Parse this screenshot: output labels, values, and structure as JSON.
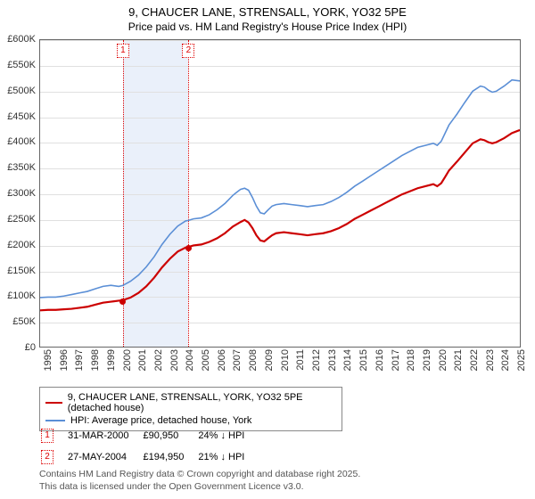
{
  "title_line1": "9, CHAUCER LANE, STRENSALL, YORK, YO32 5PE",
  "title_line2": "Price paid vs. HM Land Registry's House Price Index (HPI)",
  "chart": {
    "type": "line",
    "xlim": [
      1995,
      2025.5
    ],
    "ylim": [
      0,
      600000
    ],
    "ytick_step": 50000,
    "ytick_labels": [
      "£0",
      "£50K",
      "£100K",
      "£150K",
      "£200K",
      "£250K",
      "£300K",
      "£350K",
      "£400K",
      "£450K",
      "£500K",
      "£550K",
      "£600K"
    ],
    "xtick_step": 1,
    "xtick_labels": [
      "1995",
      "1996",
      "1997",
      "1998",
      "1999",
      "2000",
      "2001",
      "2002",
      "2003",
      "2004",
      "2005",
      "2006",
      "2007",
      "2008",
      "2009",
      "2010",
      "2011",
      "2012",
      "2013",
      "2014",
      "2015",
      "2016",
      "2017",
      "2018",
      "2019",
      "2020",
      "2021",
      "2022",
      "2023",
      "2024",
      "2025"
    ],
    "grid_color": "#e0e0e0",
    "background_band": {
      "start": 2000.25,
      "end": 2004.4,
      "color": "#eaf0fa"
    },
    "event_lines": [
      {
        "id": "1",
        "x": 2000.25
      },
      {
        "id": "2",
        "x": 2004.4
      }
    ],
    "series": [
      {
        "name": "price_paid",
        "legend": "9, CHAUCER LANE, STRENSALL, YORK, YO32 5PE (detached house)",
        "color": "#cc0000",
        "line_width": 2.2,
        "points": [
          [
            1995,
            71000
          ],
          [
            1995.5,
            72000
          ],
          [
            1996,
            72000
          ],
          [
            1996.5,
            73000
          ],
          [
            1997,
            74000
          ],
          [
            1997.5,
            76000
          ],
          [
            1998,
            78000
          ],
          [
            1998.5,
            82000
          ],
          [
            1999,
            86000
          ],
          [
            1999.5,
            88000
          ],
          [
            2000,
            90000
          ],
          [
            2000.25,
            90950
          ],
          [
            2000.75,
            96000
          ],
          [
            2001.25,
            105000
          ],
          [
            2001.75,
            118000
          ],
          [
            2002.25,
            135000
          ],
          [
            2002.75,
            155000
          ],
          [
            2003.25,
            172000
          ],
          [
            2003.75,
            186000
          ],
          [
            2004.25,
            194000
          ],
          [
            2004.4,
            194950
          ],
          [
            2004.75,
            198000
          ],
          [
            2005.25,
            200000
          ],
          [
            2005.75,
            205000
          ],
          [
            2006.25,
            212000
          ],
          [
            2006.75,
            222000
          ],
          [
            2007.25,
            235000
          ],
          [
            2007.75,
            244000
          ],
          [
            2008,
            248000
          ],
          [
            2008.25,
            243000
          ],
          [
            2008.5,
            232000
          ],
          [
            2008.75,
            218000
          ],
          [
            2009,
            208000
          ],
          [
            2009.25,
            206000
          ],
          [
            2009.5,
            212000
          ],
          [
            2009.75,
            218000
          ],
          [
            2010,
            222000
          ],
          [
            2010.5,
            224000
          ],
          [
            2011,
            222000
          ],
          [
            2011.5,
            220000
          ],
          [
            2012,
            218000
          ],
          [
            2012.5,
            220000
          ],
          [
            2013,
            222000
          ],
          [
            2013.5,
            226000
          ],
          [
            2014,
            232000
          ],
          [
            2014.5,
            240000
          ],
          [
            2015,
            250000
          ],
          [
            2015.5,
            258000
          ],
          [
            2016,
            266000
          ],
          [
            2016.5,
            274000
          ],
          [
            2017,
            282000
          ],
          [
            2017.5,
            290000
          ],
          [
            2018,
            298000
          ],
          [
            2018.5,
            304000
          ],
          [
            2019,
            310000
          ],
          [
            2019.5,
            314000
          ],
          [
            2020,
            318000
          ],
          [
            2020.25,
            314000
          ],
          [
            2020.5,
            320000
          ],
          [
            2020.75,
            332000
          ],
          [
            2021,
            345000
          ],
          [
            2021.5,
            362000
          ],
          [
            2022,
            380000
          ],
          [
            2022.5,
            398000
          ],
          [
            2023,
            406000
          ],
          [
            2023.25,
            404000
          ],
          [
            2023.5,
            400000
          ],
          [
            2023.75,
            398000
          ],
          [
            2024,
            400000
          ],
          [
            2024.5,
            408000
          ],
          [
            2025,
            418000
          ],
          [
            2025.5,
            424000
          ]
        ],
        "markers": [
          {
            "x": 2000.25,
            "y": 90950,
            "color": "#cc0000"
          },
          {
            "x": 2004.4,
            "y": 194950,
            "color": "#cc0000"
          }
        ]
      },
      {
        "name": "hpi",
        "legend": "HPI: Average price, detached house, York",
        "color": "#5b8fd6",
        "line_width": 1.6,
        "points": [
          [
            1995,
            96000
          ],
          [
            1995.5,
            97000
          ],
          [
            1996,
            97000
          ],
          [
            1996.5,
            99000
          ],
          [
            1997,
            102000
          ],
          [
            1997.5,
            105000
          ],
          [
            1998,
            108000
          ],
          [
            1998.5,
            113000
          ],
          [
            1999,
            118000
          ],
          [
            1999.5,
            120000
          ],
          [
            2000,
            118000
          ],
          [
            2000.25,
            119700
          ],
          [
            2000.75,
            128000
          ],
          [
            2001.25,
            140000
          ],
          [
            2001.75,
            156000
          ],
          [
            2002.25,
            176000
          ],
          [
            2002.75,
            200000
          ],
          [
            2003.25,
            220000
          ],
          [
            2003.75,
            236000
          ],
          [
            2004.25,
            246000
          ],
          [
            2004.4,
            246800
          ],
          [
            2004.75,
            250000
          ],
          [
            2005.25,
            252000
          ],
          [
            2005.75,
            258000
          ],
          [
            2006.25,
            268000
          ],
          [
            2006.75,
            280000
          ],
          [
            2007.25,
            296000
          ],
          [
            2007.5,
            302000
          ],
          [
            2007.75,
            308000
          ],
          [
            2008,
            310000
          ],
          [
            2008.25,
            306000
          ],
          [
            2008.5,
            292000
          ],
          [
            2008.75,
            275000
          ],
          [
            2009,
            262000
          ],
          [
            2009.25,
            260000
          ],
          [
            2009.5,
            268000
          ],
          [
            2009.75,
            275000
          ],
          [
            2010,
            278000
          ],
          [
            2010.5,
            280000
          ],
          [
            2011,
            278000
          ],
          [
            2011.5,
            276000
          ],
          [
            2012,
            274000
          ],
          [
            2012.5,
            276000
          ],
          [
            2013,
            278000
          ],
          [
            2013.5,
            284000
          ],
          [
            2014,
            292000
          ],
          [
            2014.5,
            302000
          ],
          [
            2015,
            314000
          ],
          [
            2015.5,
            324000
          ],
          [
            2016,
            334000
          ],
          [
            2016.5,
            344000
          ],
          [
            2017,
            354000
          ],
          [
            2017.5,
            364000
          ],
          [
            2018,
            374000
          ],
          [
            2018.5,
            382000
          ],
          [
            2019,
            390000
          ],
          [
            2019.5,
            394000
          ],
          [
            2020,
            398000
          ],
          [
            2020.25,
            394000
          ],
          [
            2020.5,
            402000
          ],
          [
            2020.75,
            418000
          ],
          [
            2021,
            434000
          ],
          [
            2021.5,
            455000
          ],
          [
            2022,
            478000
          ],
          [
            2022.5,
            500000
          ],
          [
            2023,
            510000
          ],
          [
            2023.25,
            508000
          ],
          [
            2023.5,
            502000
          ],
          [
            2023.75,
            498000
          ],
          [
            2024,
            500000
          ],
          [
            2024.5,
            510000
          ],
          [
            2025,
            522000
          ],
          [
            2025.5,
            520000
          ]
        ]
      }
    ]
  },
  "legend_title": "",
  "events": [
    {
      "id": "1",
      "date": "31-MAR-2000",
      "price": "£90,950",
      "diff": "24% ↓ HPI"
    },
    {
      "id": "2",
      "date": "27-MAY-2004",
      "price": "£194,950",
      "diff": "21% ↓ HPI"
    }
  ],
  "footer_line1": "Contains HM Land Registry data © Crown copyright and database right 2025.",
  "footer_line2": "This data is licensed under the Open Government Licence v3.0."
}
